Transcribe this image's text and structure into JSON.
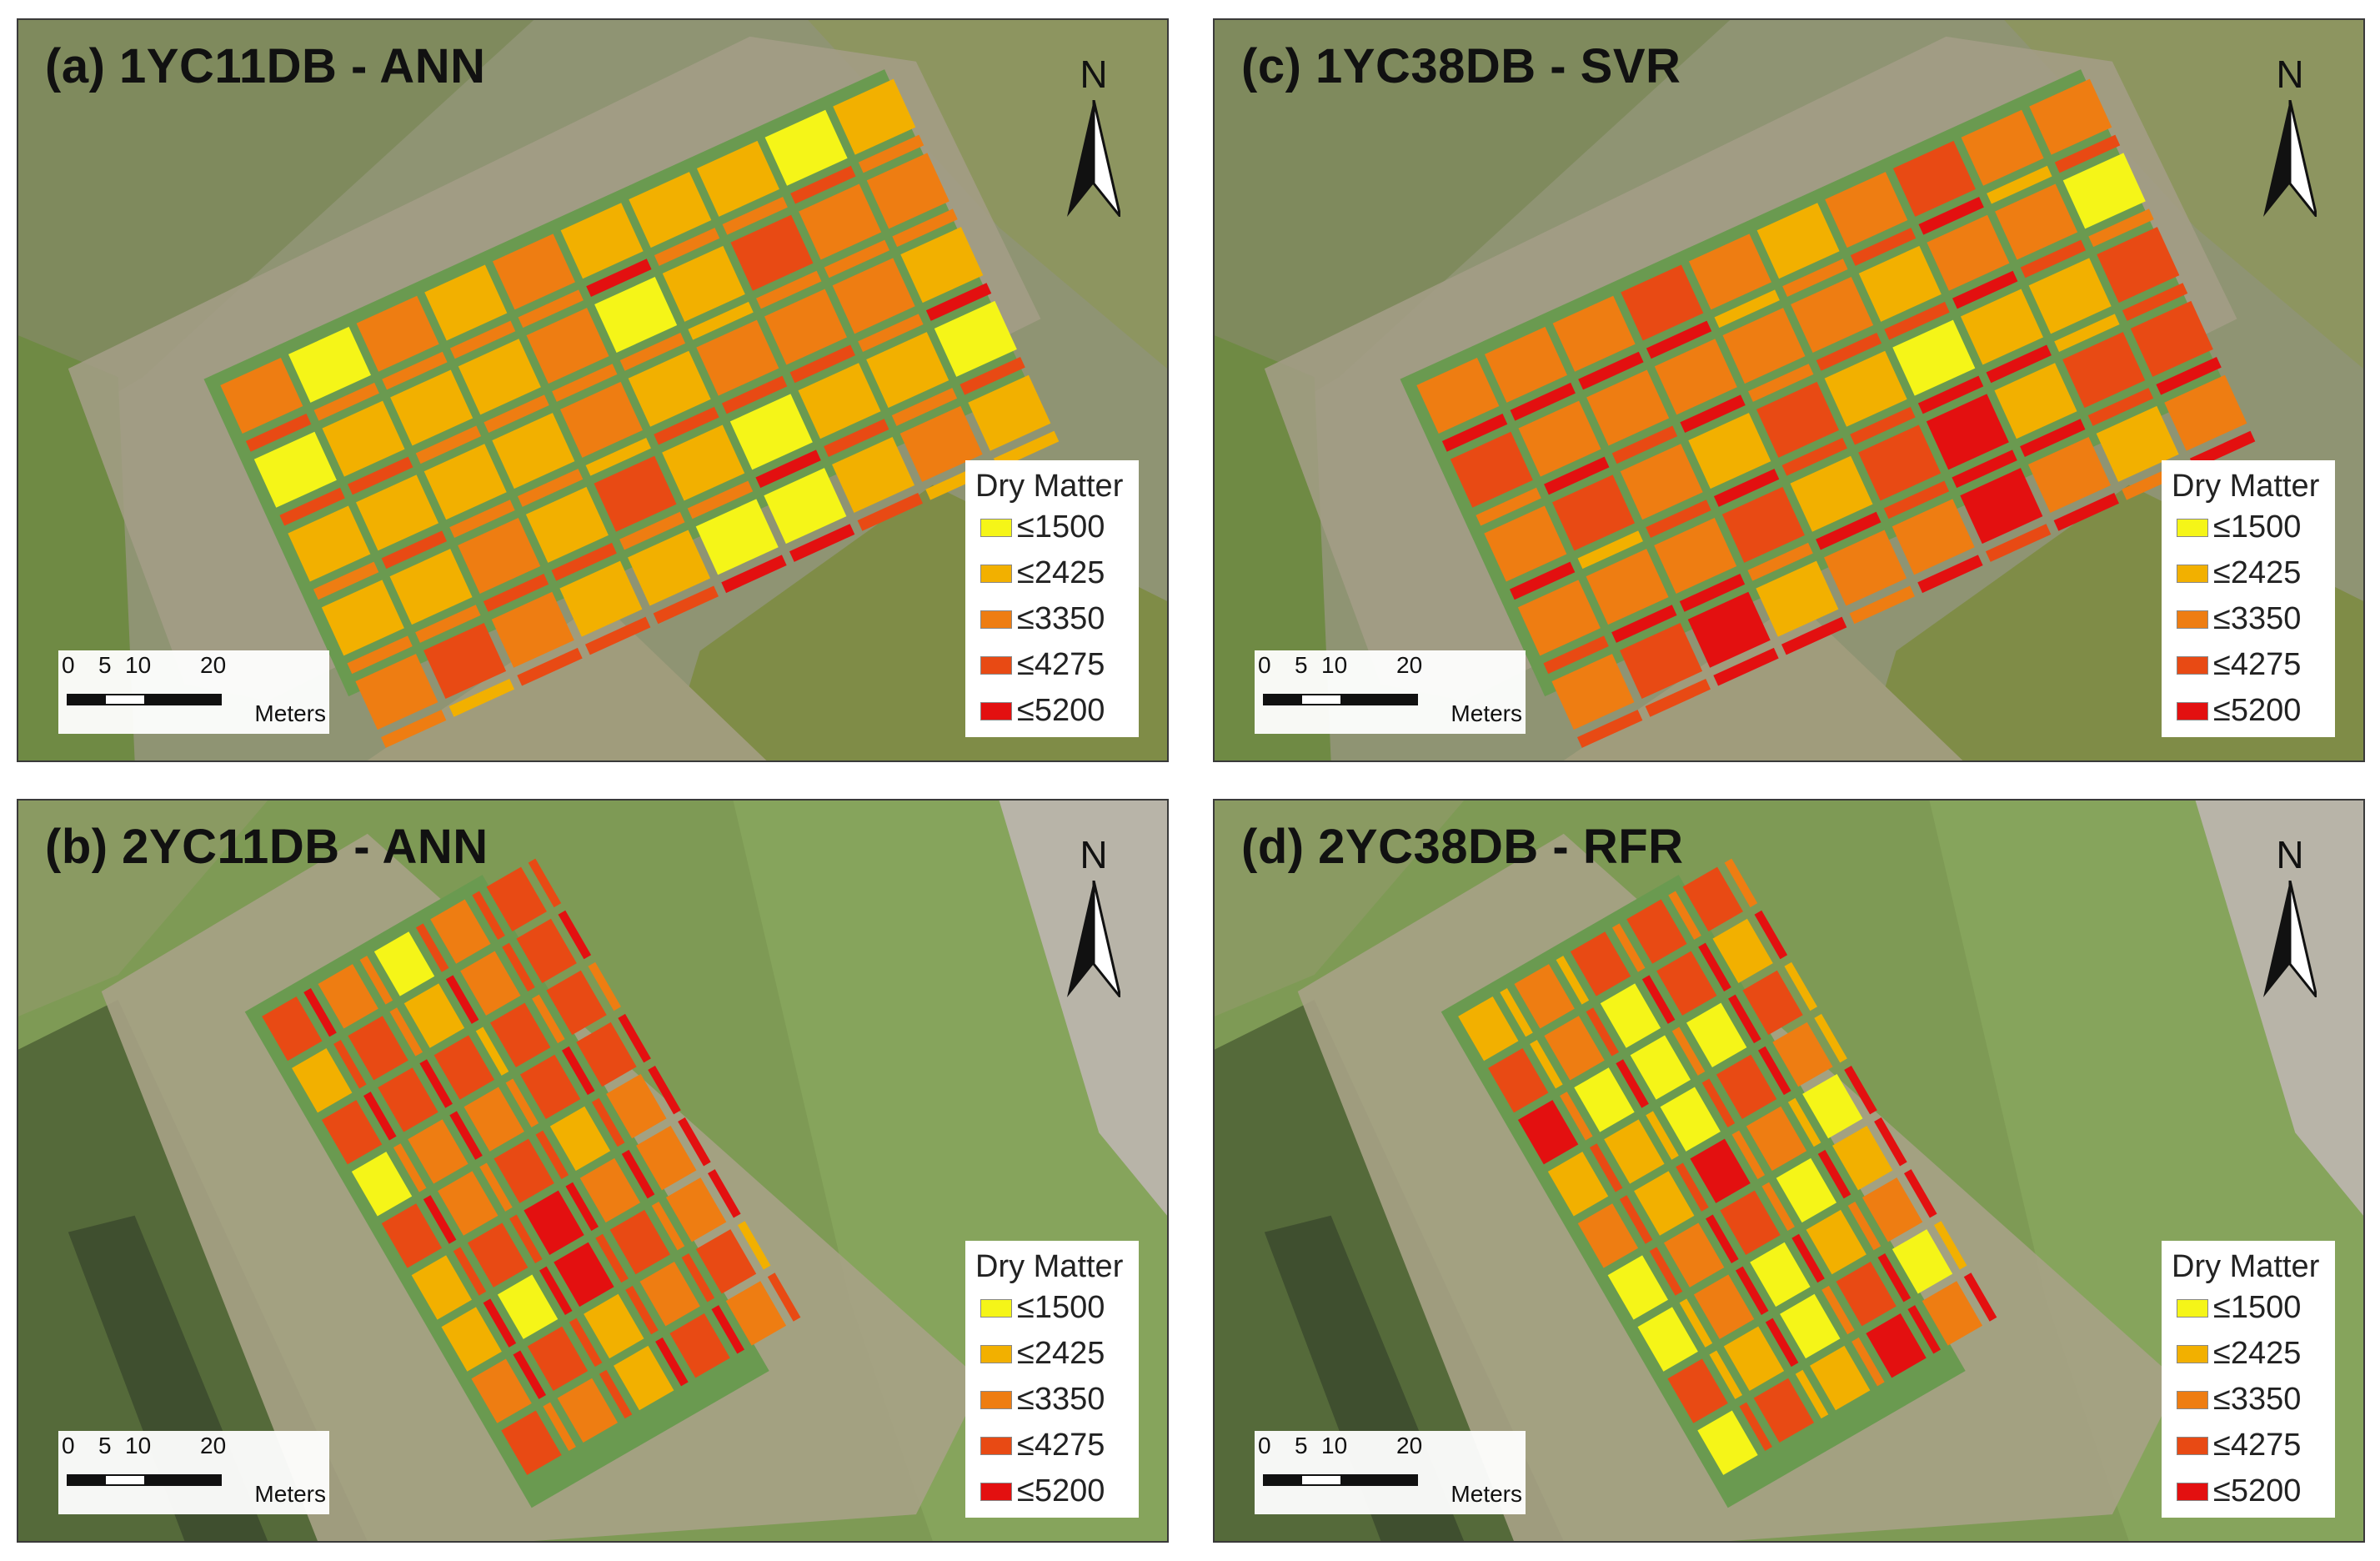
{
  "panels": [
    {
      "title": "(a) 1YC11DB - ANN",
      "north": "N",
      "pattern": "a",
      "shape": "wide"
    },
    {
      "title": "(c) 1YC38DB - SVR",
      "north": "N",
      "pattern": "c",
      "shape": "wide"
    },
    {
      "title": "(b) 2YC11DB - ANN",
      "north": "N",
      "pattern": "b",
      "shape": "tall"
    },
    {
      "title": "(d) 2YC38DB - RFR",
      "north": "N",
      "pattern": "d",
      "shape": "tall"
    }
  ],
  "legend": {
    "title": "Dry Matter",
    "items": [
      {
        "label": "≤1500",
        "color": "#f5f518"
      },
      {
        "label": "≤2425",
        "color": "#f2b000"
      },
      {
        "label": "≤3350",
        "color": "#ee7d12"
      },
      {
        "label": "≤4275",
        "color": "#e84a14"
      },
      {
        "label": "≤5200",
        "color": "#e31010"
      }
    ]
  },
  "scalebar": {
    "ticks": [
      "0",
      "5",
      "10",
      "20"
    ],
    "units": "Meters"
  },
  "icons": {
    "north_arrow": "north-arrow-icon"
  }
}
